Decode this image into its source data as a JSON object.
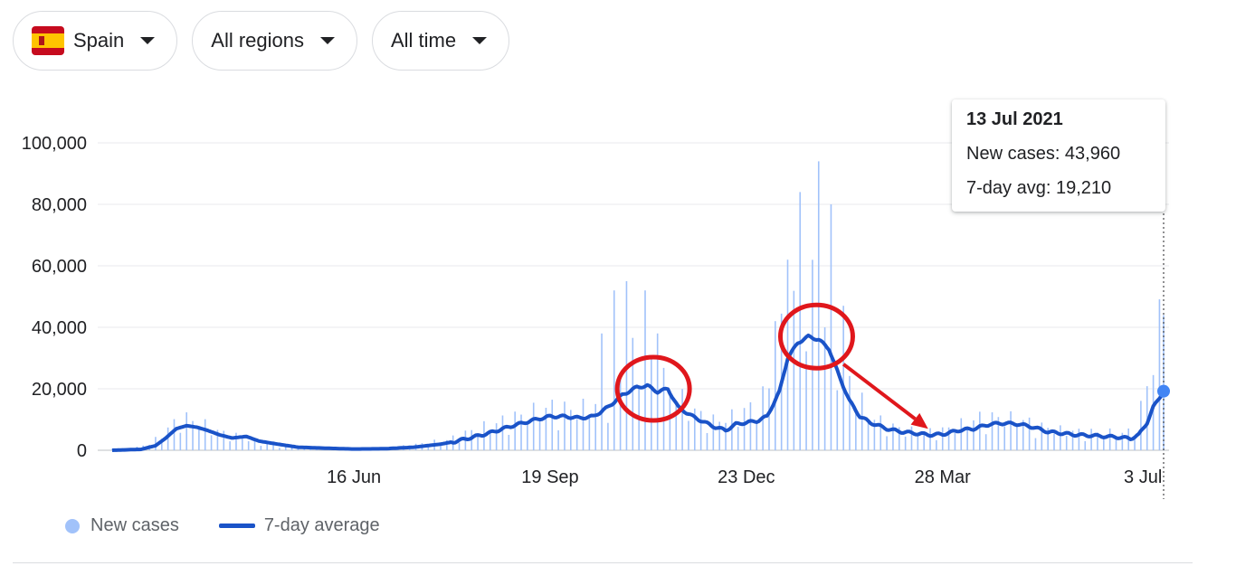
{
  "filters": {
    "country": "Spain",
    "region": "All regions",
    "period": "All time"
  },
  "tooltip": {
    "date": "13 Jul 2021",
    "new_cases": "New cases: 43,960",
    "avg": "7-day avg: 19,210"
  },
  "legend": {
    "bars": "New cases",
    "line": "7-day average"
  },
  "colors": {
    "bars": "#a1c2fa",
    "line": "#1a53c8",
    "annotation": "#e0171c",
    "flag_red": "#c60b1e",
    "flag_yellow": "#ffc400"
  },
  "chart_data": {
    "type": "bar",
    "overlay_series_type": "line",
    "x_start": "2020-02-20",
    "x_end": "2021-07-13",
    "x_ticks": [
      {
        "label": "16 Jun",
        "date": "2020-06-16"
      },
      {
        "label": "19 Sep",
        "date": "2020-09-19"
      },
      {
        "label": "23 Dec",
        "date": "2020-12-23"
      },
      {
        "label": "28 Mar",
        "date": "2021-03-28"
      },
      {
        "label": "3 Jul",
        "date": "2021-07-03"
      }
    ],
    "y_ticks": [
      "0",
      "20,000",
      "40,000",
      "60,000",
      "80,000",
      "100,000"
    ],
    "ylim": [
      0,
      100000
    ],
    "grid": true,
    "legend_position": "bottom-left",
    "series": [
      {
        "name": "New cases",
        "points": [
          [
            "2020-03-01",
            500
          ],
          [
            "2020-03-10",
            2000
          ],
          [
            "2020-03-18",
            6000
          ],
          [
            "2020-03-24",
            9000
          ],
          [
            "2020-03-30",
            8500
          ],
          [
            "2020-04-05",
            7000
          ],
          [
            "2020-04-12",
            5000
          ],
          [
            "2020-04-20",
            4000
          ],
          [
            "2020-05-01",
            2000
          ],
          [
            "2020-05-15",
            800
          ],
          [
            "2020-06-01",
            500
          ],
          [
            "2020-06-16",
            400
          ],
          [
            "2020-07-01",
            600
          ],
          [
            "2020-07-15",
            1500
          ],
          [
            "2020-08-01",
            3000
          ],
          [
            "2020-08-15",
            6000
          ],
          [
            "2020-09-01",
            9000
          ],
          [
            "2020-09-19",
            12000
          ],
          [
            "2020-10-01",
            11000
          ],
          [
            "2020-10-15",
            13000
          ],
          [
            "2020-10-22",
            20000
          ],
          [
            "2020-10-30",
            26000
          ],
          [
            "2020-11-05",
            23000
          ],
          [
            "2020-11-15",
            18000
          ],
          [
            "2020-11-25",
            12000
          ],
          [
            "2020-12-05",
            8000
          ],
          [
            "2020-12-15",
            9000
          ],
          [
            "2020-12-23",
            11000
          ],
          [
            "2021-01-01",
            15000
          ],
          [
            "2021-01-10",
            33000
          ],
          [
            "2021-01-18",
            44000
          ],
          [
            "2021-01-25",
            43000
          ],
          [
            "2021-02-01",
            35000
          ],
          [
            "2021-02-10",
            20000
          ],
          [
            "2021-02-20",
            10000
          ],
          [
            "2021-03-01",
            7000
          ],
          [
            "2021-03-10",
            5500
          ],
          [
            "2021-03-20",
            5000
          ],
          [
            "2021-03-28",
            5500
          ],
          [
            "2021-04-05",
            7000
          ],
          [
            "2021-04-15",
            9000
          ],
          [
            "2021-04-25",
            9000
          ],
          [
            "2021-05-05",
            8500
          ],
          [
            "2021-05-15",
            6500
          ],
          [
            "2021-05-25",
            5500
          ],
          [
            "2021-06-05",
            5000
          ],
          [
            "2021-06-15",
            5000
          ],
          [
            "2021-06-25",
            4500
          ],
          [
            "2021-07-01",
            9000
          ],
          [
            "2021-07-06",
            21000
          ],
          [
            "2021-07-10",
            29000
          ],
          [
            "2021-07-13",
            43960
          ]
        ],
        "spikes": [
          [
            "2020-10-20",
            52000
          ],
          [
            "2020-10-27",
            55000
          ],
          [
            "2020-11-03",
            52000
          ],
          [
            "2020-10-13",
            38000
          ],
          [
            "2020-11-10",
            38000
          ],
          [
            "2021-01-05",
            42000
          ],
          [
            "2021-01-12",
            62000
          ],
          [
            "2021-01-19",
            84000
          ],
          [
            "2021-01-26",
            94000
          ],
          [
            "2021-02-02",
            80000
          ],
          [
            "2021-02-09",
            47000
          ]
        ]
      },
      {
        "name": "7-day average",
        "points": [
          [
            "2020-02-20",
            0
          ],
          [
            "2020-03-05",
            300
          ],
          [
            "2020-03-12",
            1500
          ],
          [
            "2020-03-17",
            4000
          ],
          [
            "2020-03-22",
            7000
          ],
          [
            "2020-03-27",
            8000
          ],
          [
            "2020-04-01",
            7500
          ],
          [
            "2020-04-06",
            6500
          ],
          [
            "2020-04-12",
            5000
          ],
          [
            "2020-04-18",
            4000
          ],
          [
            "2020-04-25",
            4500
          ],
          [
            "2020-05-01",
            3000
          ],
          [
            "2020-05-10",
            2000
          ],
          [
            "2020-05-20",
            1000
          ],
          [
            "2020-06-01",
            700
          ],
          [
            "2020-06-16",
            400
          ],
          [
            "2020-07-01",
            500
          ],
          [
            "2020-07-15",
            1000
          ],
          [
            "2020-07-28",
            2000
          ],
          [
            "2020-08-05",
            3000
          ],
          [
            "2020-08-20",
            5500
          ],
          [
            "2020-09-01",
            8000
          ],
          [
            "2020-09-12",
            10000
          ],
          [
            "2020-09-19",
            11000
          ],
          [
            "2020-09-26",
            11000
          ],
          [
            "2020-10-03",
            10500
          ],
          [
            "2020-10-10",
            11000
          ],
          [
            "2020-10-17",
            14000
          ],
          [
            "2020-10-24",
            18000
          ],
          [
            "2020-10-31",
            20500
          ],
          [
            "2020-11-05",
            21000
          ],
          [
            "2020-11-10",
            19000
          ],
          [
            "2020-11-15",
            20000
          ],
          [
            "2020-11-20",
            14000
          ],
          [
            "2020-11-27",
            11000
          ],
          [
            "2020-12-03",
            9000
          ],
          [
            "2020-12-08",
            7500
          ],
          [
            "2020-12-13",
            6500
          ],
          [
            "2020-12-18",
            8500
          ],
          [
            "2020-12-23",
            9000
          ],
          [
            "2020-12-28",
            9500
          ],
          [
            "2021-01-02",
            11000
          ],
          [
            "2021-01-08",
            19000
          ],
          [
            "2021-01-12",
            30000
          ],
          [
            "2021-01-17",
            35000
          ],
          [
            "2021-01-22",
            37000
          ],
          [
            "2021-01-27",
            36000
          ],
          [
            "2021-02-01",
            33000
          ],
          [
            "2021-02-06",
            24000
          ],
          [
            "2021-02-11",
            16000
          ],
          [
            "2021-02-16",
            11000
          ],
          [
            "2021-02-21",
            9000
          ],
          [
            "2021-03-01",
            7000
          ],
          [
            "2021-03-08",
            6000
          ],
          [
            "2021-03-15",
            5500
          ],
          [
            "2021-03-22",
            5000
          ],
          [
            "2021-03-28",
            5200
          ],
          [
            "2021-04-05",
            6500
          ],
          [
            "2021-04-12",
            7000
          ],
          [
            "2021-04-20",
            8500
          ],
          [
            "2021-04-27",
            8800
          ],
          [
            "2021-05-04",
            8500
          ],
          [
            "2021-05-11",
            7500
          ],
          [
            "2021-05-18",
            6000
          ],
          [
            "2021-05-25",
            5500
          ],
          [
            "2021-06-01",
            5000
          ],
          [
            "2021-06-08",
            4800
          ],
          [
            "2021-06-15",
            4500
          ],
          [
            "2021-06-22",
            4200
          ],
          [
            "2021-06-27",
            3800
          ],
          [
            "2021-07-01",
            5000
          ],
          [
            "2021-07-05",
            9000
          ],
          [
            "2021-07-08",
            14000
          ],
          [
            "2021-07-13",
            19210
          ]
        ]
      }
    ],
    "highlight_date": "2021-07-13",
    "annotations": [
      {
        "type": "circle",
        "center": [
          "2020-11-08",
          20000
        ]
      },
      {
        "type": "circle",
        "center": [
          "2021-01-26",
          37000
        ]
      },
      {
        "type": "arrow",
        "from": [
          "2021-02-08",
          28000
        ],
        "to": [
          "2021-03-21",
          7000
        ]
      }
    ]
  }
}
